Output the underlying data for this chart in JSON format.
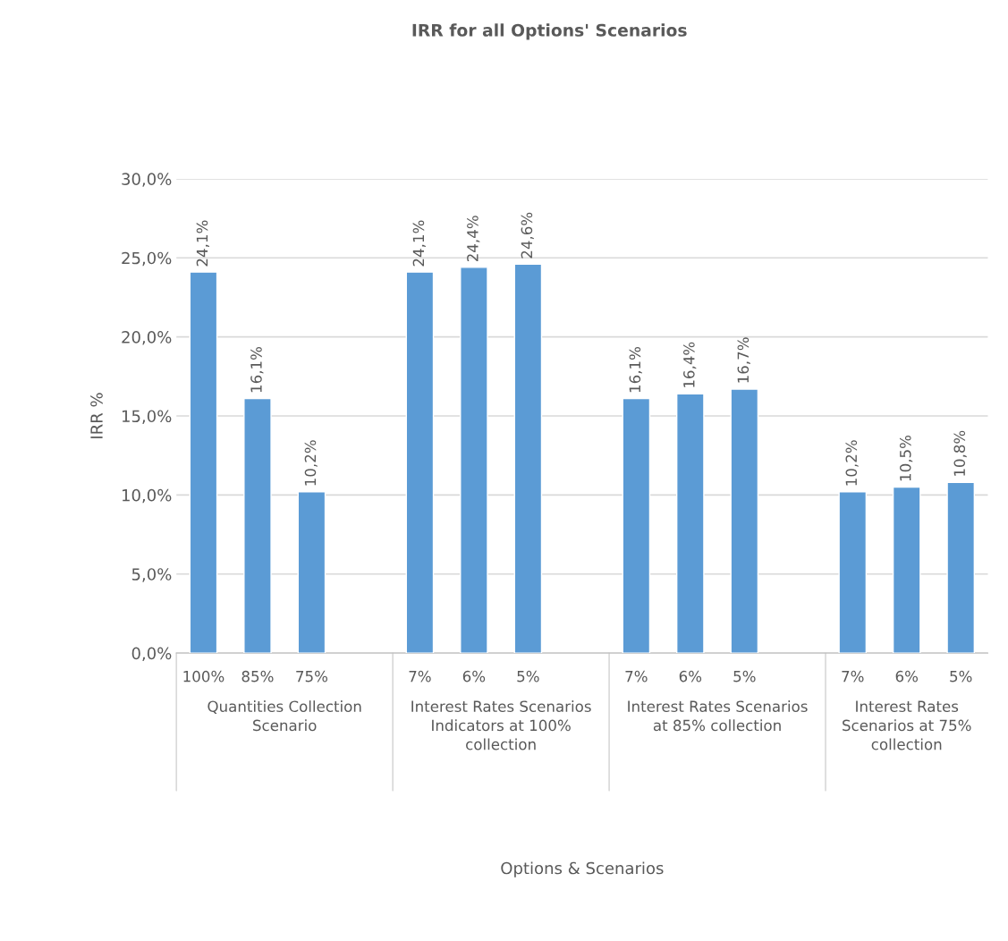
{
  "chart_data": {
    "type": "bar",
    "title": "IRR for all Options' Scenarios",
    "ylabel": "IRR %",
    "categories": [
      "100%",
      "85%",
      "75%",
      null,
      "7%",
      "6%",
      "5%",
      null,
      "7%",
      "6%",
      "5%",
      null,
      "7%",
      "6%",
      "5%"
    ],
    "series": [
      {
        "color": "#5b9bd5",
        "values": [
          24.1,
          16.1,
          10.2,
          null,
          24.1,
          24.4,
          24.6,
          null,
          16.1,
          16.4,
          16.7,
          null,
          10.2,
          10.5,
          10.8
        ],
        "value_labels": [
          "24,1%",
          "16,1%",
          "10,2%",
          null,
          "24,1%",
          "24,4%",
          "24,6%",
          null,
          "16,1%",
          "16,4%",
          "16,7%",
          null,
          "10,2%",
          "10,5%",
          "10,8%"
        ]
      }
    ],
    "annotations": [
      "Quantities Collection\nScenario",
      "Interest Rates Scenarios\nIndicators at 100%\ncollection",
      "Interest Rates Scenarios\nat 85% collection",
      "Interest Rates\nScenarios at 75%\ncollection",
      "Options & Scenarios"
    ],
    "ylim": [
      0,
      30
    ],
    "yticks": [
      {
        "value": 0,
        "label": "0,0%"
      },
      {
        "value": 5,
        "label": "5,0%"
      },
      {
        "value": 10,
        "label": "10,0%"
      },
      {
        "value": 15,
        "label": "15,0%"
      },
      {
        "value": 20,
        "label": "20,0%"
      },
      {
        "value": 25,
        "label": "25,0%"
      },
      {
        "value": 30,
        "label": "30,0%"
      }
    ],
    "grid": "y",
    "legend": false
  }
}
